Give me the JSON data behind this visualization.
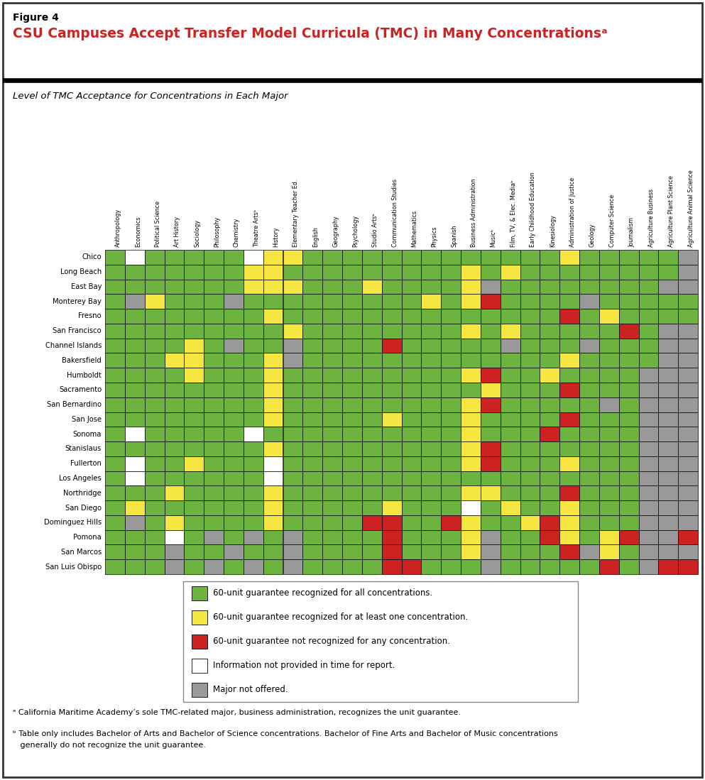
{
  "figure_label": "Figure 4",
  "title": "CSU Campuses Accept Transfer Model Curricula (TMC) in Many Concentrationsᵃ",
  "subtitle": "Level of TMC Acceptance for Concentrations in Each Major",
  "columns": [
    "Anthropology",
    "Economics",
    "Political Science",
    "Art History",
    "Sociology",
    "Philosophy",
    "Chemistry",
    "Theatre Artsᵇ",
    "History",
    "Elementary Teacher Ed.",
    "English",
    "Geography",
    "Psychology",
    "Studio Artsᵇ",
    "Communication Studies",
    "Mathematics",
    "Physics",
    "Spanish",
    "Business Administration",
    "Musicᵇ",
    "Film, TV, & Elec. Mediaᵇ",
    "Early Childhood Education",
    "Kinesiology",
    "Administration of Justice",
    "Geology",
    "Computer Science",
    "Journalism",
    "Agriculture Business",
    "Agriculture Plant Science",
    "Agriculture Animal Science"
  ],
  "rows": [
    "Chico",
    "Long Beach",
    "East Bay",
    "Monterey Bay",
    "Fresno",
    "San Francisco",
    "Channel Islands",
    "Bakersfield",
    "Humboldt",
    "Sacramento",
    "San Bernardino",
    "San Jose",
    "Sonoma",
    "Stanislaus",
    "Fullerton",
    "Los Angeles",
    "Northridge",
    "San Diego",
    "Dominguez Hills",
    "Pomona",
    "San Marcos",
    "San Luis Obispo"
  ],
  "colors": {
    "G": "#6db33f",
    "Y": "#f5e642",
    "R": "#cc2222",
    "W": "#ffffff",
    "X": "#999999"
  },
  "grid": [
    [
      "G",
      "W",
      "G",
      "G",
      "G",
      "G",
      "G",
      "W",
      "Y",
      "Y",
      "G",
      "G",
      "G",
      "G",
      "G",
      "G",
      "G",
      "G",
      "G",
      "G",
      "G",
      "G",
      "G",
      "Y",
      "G",
      "G",
      "G",
      "G",
      "G",
      "X"
    ],
    [
      "G",
      "G",
      "G",
      "G",
      "G",
      "G",
      "G",
      "Y",
      "Y",
      "G",
      "G",
      "G",
      "G",
      "G",
      "G",
      "G",
      "G",
      "G",
      "Y",
      "G",
      "Y",
      "G",
      "G",
      "G",
      "G",
      "G",
      "G",
      "G",
      "G",
      "X"
    ],
    [
      "G",
      "G",
      "G",
      "G",
      "G",
      "G",
      "G",
      "Y",
      "Y",
      "Y",
      "G",
      "G",
      "G",
      "Y",
      "G",
      "G",
      "G",
      "G",
      "Y",
      "X",
      "G",
      "G",
      "G",
      "G",
      "G",
      "G",
      "G",
      "G",
      "X",
      "X"
    ],
    [
      "G",
      "X",
      "Y",
      "G",
      "G",
      "G",
      "X",
      "G",
      "G",
      "G",
      "G",
      "G",
      "G",
      "G",
      "G",
      "G",
      "Y",
      "G",
      "Y",
      "R",
      "G",
      "G",
      "G",
      "G",
      "X",
      "G",
      "G",
      "G",
      "G",
      "G"
    ],
    [
      "G",
      "G",
      "G",
      "G",
      "G",
      "G",
      "G",
      "G",
      "Y",
      "G",
      "G",
      "G",
      "G",
      "G",
      "G",
      "G",
      "G",
      "G",
      "G",
      "G",
      "G",
      "G",
      "G",
      "R",
      "G",
      "Y",
      "G",
      "G",
      "G",
      "G"
    ],
    [
      "G",
      "G",
      "G",
      "G",
      "G",
      "G",
      "G",
      "G",
      "G",
      "Y",
      "G",
      "G",
      "G",
      "G",
      "G",
      "G",
      "G",
      "G",
      "Y",
      "G",
      "Y",
      "G",
      "G",
      "G",
      "G",
      "G",
      "R",
      "G",
      "X",
      "X"
    ],
    [
      "G",
      "G",
      "G",
      "G",
      "Y",
      "G",
      "X",
      "G",
      "G",
      "X",
      "G",
      "G",
      "G",
      "G",
      "R",
      "G",
      "G",
      "G",
      "G",
      "G",
      "X",
      "G",
      "G",
      "G",
      "X",
      "G",
      "G",
      "G",
      "X",
      "X"
    ],
    [
      "G",
      "G",
      "G",
      "Y",
      "Y",
      "G",
      "G",
      "G",
      "Y",
      "X",
      "G",
      "G",
      "G",
      "G",
      "G",
      "G",
      "G",
      "G",
      "G",
      "G",
      "G",
      "G",
      "G",
      "Y",
      "G",
      "G",
      "G",
      "G",
      "X",
      "X"
    ],
    [
      "G",
      "G",
      "G",
      "G",
      "Y",
      "G",
      "G",
      "G",
      "Y",
      "G",
      "G",
      "G",
      "G",
      "G",
      "G",
      "G",
      "G",
      "G",
      "Y",
      "R",
      "G",
      "G",
      "Y",
      "G",
      "G",
      "G",
      "G",
      "X",
      "X",
      "X"
    ],
    [
      "G",
      "G",
      "G",
      "G",
      "G",
      "G",
      "G",
      "G",
      "Y",
      "G",
      "G",
      "G",
      "G",
      "G",
      "G",
      "G",
      "G",
      "G",
      "G",
      "Y",
      "G",
      "G",
      "G",
      "R",
      "G",
      "G",
      "G",
      "X",
      "X",
      "X"
    ],
    [
      "G",
      "G",
      "G",
      "G",
      "G",
      "G",
      "G",
      "G",
      "Y",
      "G",
      "G",
      "G",
      "G",
      "G",
      "G",
      "G",
      "G",
      "G",
      "Y",
      "R",
      "G",
      "G",
      "G",
      "G",
      "G",
      "X",
      "G",
      "X",
      "X",
      "X"
    ],
    [
      "G",
      "G",
      "G",
      "G",
      "G",
      "G",
      "G",
      "G",
      "Y",
      "G",
      "G",
      "G",
      "G",
      "G",
      "Y",
      "G",
      "G",
      "G",
      "Y",
      "G",
      "G",
      "G",
      "G",
      "R",
      "G",
      "G",
      "G",
      "X",
      "X",
      "X"
    ],
    [
      "G",
      "W",
      "G",
      "G",
      "G",
      "G",
      "G",
      "W",
      "G",
      "G",
      "G",
      "G",
      "G",
      "G",
      "G",
      "G",
      "G",
      "G",
      "Y",
      "G",
      "G",
      "G",
      "R",
      "G",
      "G",
      "G",
      "G",
      "X",
      "X",
      "X"
    ],
    [
      "G",
      "G",
      "G",
      "G",
      "G",
      "G",
      "G",
      "G",
      "Y",
      "G",
      "G",
      "G",
      "G",
      "G",
      "G",
      "G",
      "G",
      "G",
      "Y",
      "R",
      "G",
      "G",
      "G",
      "G",
      "G",
      "G",
      "G",
      "X",
      "X",
      "X"
    ],
    [
      "G",
      "W",
      "G",
      "G",
      "Y",
      "G",
      "G",
      "G",
      "W",
      "G",
      "G",
      "G",
      "G",
      "G",
      "G",
      "G",
      "G",
      "G",
      "Y",
      "R",
      "G",
      "G",
      "G",
      "Y",
      "G",
      "G",
      "G",
      "X",
      "X",
      "X"
    ],
    [
      "G",
      "W",
      "G",
      "G",
      "G",
      "G",
      "G",
      "G",
      "W",
      "G",
      "G",
      "G",
      "G",
      "G",
      "G",
      "G",
      "G",
      "G",
      "G",
      "G",
      "G",
      "G",
      "G",
      "G",
      "G",
      "G",
      "G",
      "X",
      "X",
      "X"
    ],
    [
      "G",
      "G",
      "G",
      "Y",
      "G",
      "G",
      "G",
      "G",
      "Y",
      "G",
      "G",
      "G",
      "G",
      "G",
      "G",
      "G",
      "G",
      "G",
      "Y",
      "Y",
      "G",
      "G",
      "G",
      "R",
      "G",
      "G",
      "G",
      "X",
      "X",
      "X"
    ],
    [
      "G",
      "Y",
      "G",
      "G",
      "G",
      "G",
      "G",
      "G",
      "Y",
      "G",
      "G",
      "G",
      "G",
      "G",
      "Y",
      "G",
      "G",
      "G",
      "W",
      "G",
      "Y",
      "G",
      "G",
      "Y",
      "G",
      "G",
      "G",
      "X",
      "X",
      "X"
    ],
    [
      "G",
      "X",
      "G",
      "Y",
      "G",
      "G",
      "G",
      "G",
      "Y",
      "G",
      "G",
      "G",
      "G",
      "R",
      "R",
      "G",
      "G",
      "R",
      "Y",
      "G",
      "G",
      "Y",
      "R",
      "Y",
      "G",
      "G",
      "G",
      "X",
      "X",
      "X"
    ],
    [
      "G",
      "G",
      "G",
      "W",
      "G",
      "X",
      "G",
      "X",
      "G",
      "X",
      "G",
      "G",
      "G",
      "G",
      "R",
      "G",
      "G",
      "G",
      "Y",
      "X",
      "G",
      "G",
      "R",
      "Y",
      "G",
      "Y",
      "R",
      "X",
      "X",
      "R"
    ],
    [
      "G",
      "G",
      "G",
      "X",
      "G",
      "G",
      "X",
      "G",
      "G",
      "X",
      "G",
      "G",
      "G",
      "G",
      "R",
      "G",
      "G",
      "G",
      "Y",
      "X",
      "G",
      "G",
      "G",
      "R",
      "X",
      "Y",
      "G",
      "X",
      "X",
      "X"
    ],
    [
      "G",
      "G",
      "G",
      "X",
      "G",
      "X",
      "G",
      "X",
      "G",
      "X",
      "G",
      "G",
      "G",
      "G",
      "R",
      "R",
      "G",
      "G",
      "G",
      "X",
      "G",
      "G",
      "G",
      "G",
      "G",
      "R",
      "G",
      "X",
      "R",
      "R"
    ]
  ],
  "legend_items": [
    {
      "color": "#6db33f",
      "label": "60-unit guarantee recognized for all concentrations."
    },
    {
      "color": "#f5e642",
      "label": "60-unit guarantee recognized for at least one concentration."
    },
    {
      "color": "#cc2222",
      "label": "60-unit guarantee not recognized for any concentration."
    },
    {
      "color": "#ffffff",
      "label": "Information not provided in time for report."
    },
    {
      "color": "#999999",
      "label": "Major not offered."
    }
  ],
  "footnote_a": "ᵃ California Maritime Academy’s sole TMC-related major, business administration, recognizes the unit guarantee.",
  "footnote_b_line1": "ᵇ Table only includes Bachelor of Arts and Bachelor of Science concentrations. Bachelor of Fine Arts and Bachelor of Music concentrations",
  "footnote_b_line2": "   generally do not recognize the unit guarantee.",
  "title_color": "#cc2222",
  "border_color": "#222222",
  "fig_width": 9.93,
  "fig_height": 10.99
}
